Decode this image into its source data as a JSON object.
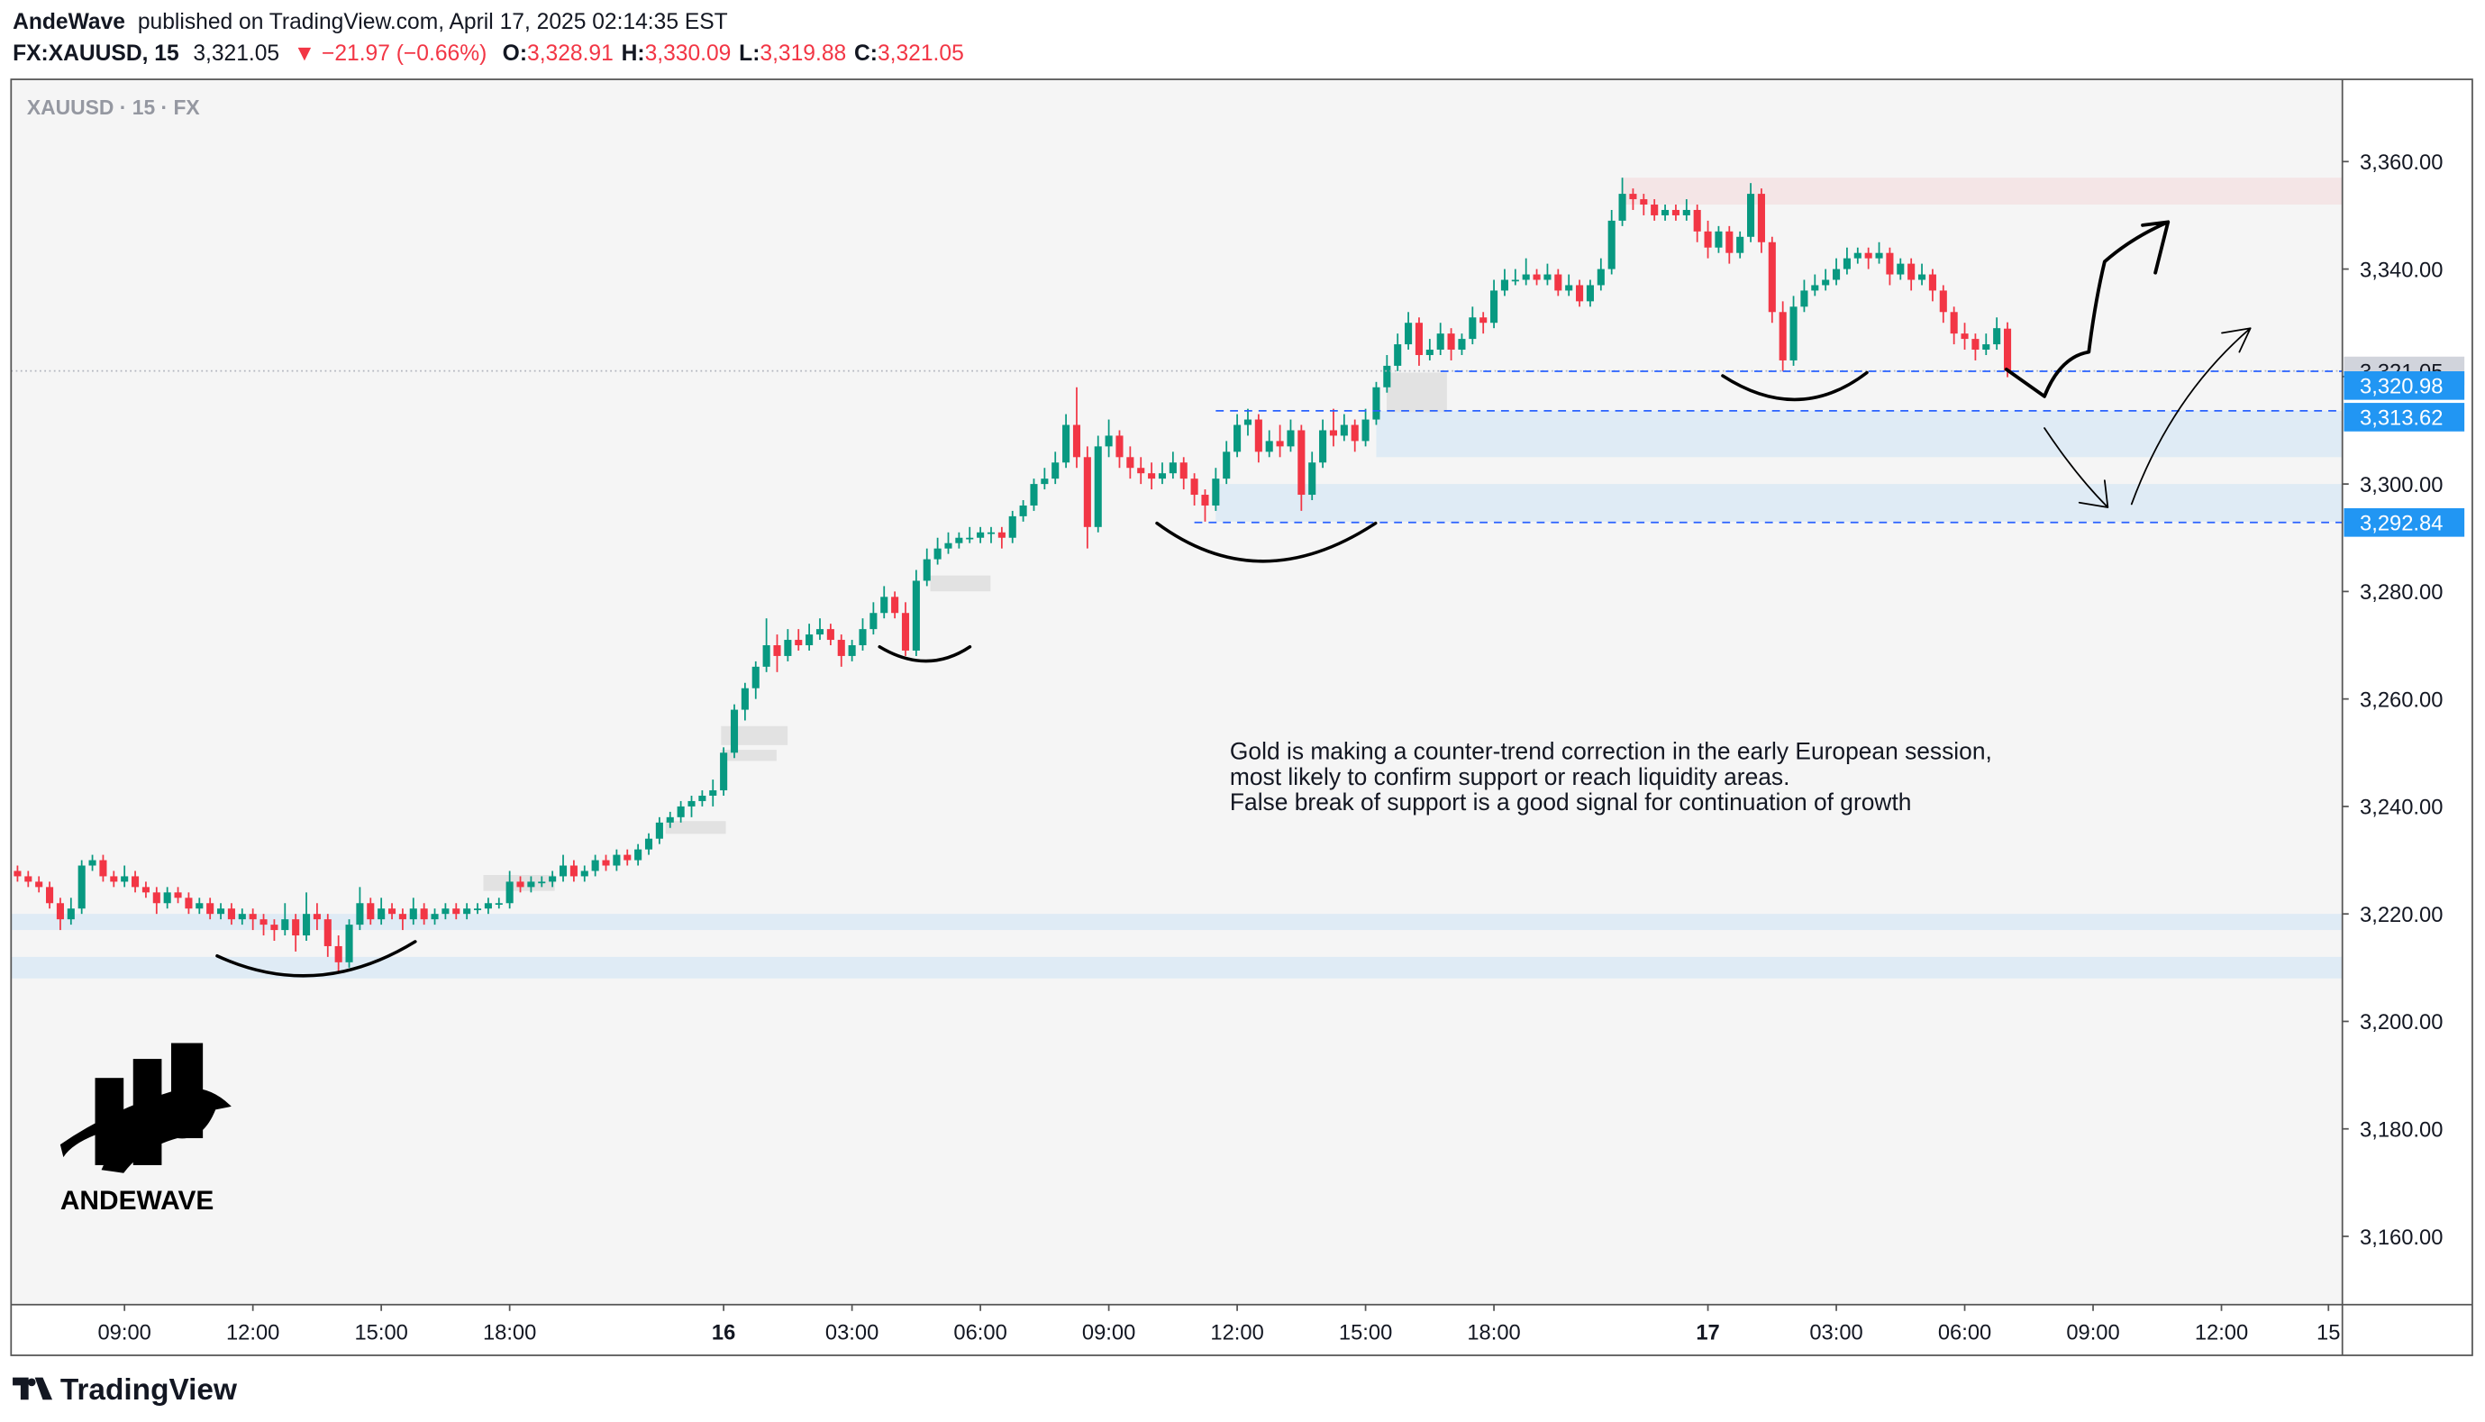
{
  "chart_data": {
    "type": "candlestick",
    "header": {
      "author": "AndeWave",
      "published": "published on TradingView.com, April 17, 2025 02:14:35 EST",
      "symbol": "FX:XAUUSD, 15",
      "last": "3,321.05",
      "change": "▼ −21.97 (−0.66%)",
      "ohlc": [
        {
          "label": "O:",
          "value": "3,328.91"
        },
        {
          "label": "H:",
          "value": "3,330.09"
        },
        {
          "label": "L:",
          "value": "3,319.88"
        },
        {
          "label": "C:",
          "value": "3,321.05"
        }
      ]
    },
    "watermark": "XAUUSD · 15 · FX",
    "annotation": [
      "Gold is making a counter-trend correction in the early European session,",
      "most likely to confirm support or reach liquidity areas.",
      "False break of support is a good signal for continuation of growth"
    ],
    "logo": "ANDEWAVE",
    "footer": "TradingView",
    "up_color": "#089981",
    "down_color": "#f23645",
    "xlim": [
      -0.6,
      217.3
    ],
    "xticks": [
      {
        "value": 10,
        "label": "09:00"
      },
      {
        "value": 22,
        "label": "12:00"
      },
      {
        "value": 34,
        "label": "15:00"
      },
      {
        "value": 46,
        "label": "18:00"
      },
      {
        "value": 66,
        "label": "16"
      },
      {
        "value": 78,
        "label": "03:00"
      },
      {
        "value": 90,
        "label": "06:00"
      },
      {
        "value": 102,
        "label": "09:00"
      },
      {
        "value": 114,
        "label": "12:00"
      },
      {
        "value": 126,
        "label": "15:00"
      },
      {
        "value": 138,
        "label": "18:00"
      },
      {
        "value": 158,
        "label": "17"
      },
      {
        "value": 170,
        "label": "03:00"
      },
      {
        "value": 182,
        "label": "06:00"
      },
      {
        "value": 194,
        "label": "09:00"
      },
      {
        "value": 206,
        "label": "12:00"
      },
      {
        "value": 216,
        "label": "15"
      }
    ],
    "ylim": [
      3147.3,
      3375.3
    ],
    "yticks": [
      {
        "value": 3160,
        "label": "3,160.00"
      },
      {
        "value": 3180,
        "label": "3,180.00"
      },
      {
        "value": 3200,
        "label": "3,200.00"
      },
      {
        "value": 3220,
        "label": "3,220.00"
      },
      {
        "value": 3240,
        "label": "3,240.00"
      },
      {
        "value": 3260,
        "label": "3,260.00"
      },
      {
        "value": 3280,
        "label": "3,280.00"
      },
      {
        "value": 3300,
        "label": "3,300.00"
      },
      {
        "value": 3320,
        "label": "3,320.00"
      },
      {
        "value": 3340,
        "label": "3,340.00"
      },
      {
        "value": 3360,
        "label": "3,360.00"
      }
    ],
    "price_label": {
      "value": 3321.05,
      "label": "3,321.05"
    },
    "levels": [
      {
        "value": 3320.98,
        "label": "3,320.98",
        "from": 133
      },
      {
        "value": 3313.62,
        "label": "3,313.62",
        "from": 112
      },
      {
        "value": 3292.84,
        "label": "3,292.84",
        "from": 110
      }
    ],
    "zones": [
      {
        "low": 3352,
        "high": 3357,
        "from": 150,
        "color": "rgba(242,54,69,0.08)"
      },
      {
        "low": 3305,
        "high": 3313.62,
        "from": 127,
        "color": "rgba(33,150,243,0.1)"
      },
      {
        "low": 3293,
        "high": 3300,
        "from": 112,
        "color": "rgba(33,150,243,0.1)"
      },
      {
        "low": 3217,
        "high": 3220,
        "from": -0.6,
        "color": "rgba(33,150,243,0.1)"
      },
      {
        "low": 3208,
        "high": 3212,
        "from": -0.6,
        "color": "rgba(33,150,243,0.1)"
      }
    ],
    "candles": [
      [
        3228,
        3229,
        3226,
        3227
      ],
      [
        3227,
        3228,
        3225,
        3226
      ],
      [
        3226,
        3227,
        3224,
        3225
      ],
      [
        3225,
        3226,
        3221,
        3222
      ],
      [
        3222,
        3223,
        3217,
        3219
      ],
      [
        3219,
        3223,
        3218,
        3221
      ],
      [
        3221,
        3230,
        3220,
        3229
      ],
      [
        3229,
        3231,
        3228,
        3230
      ],
      [
        3230,
        3231,
        3226,
        3227
      ],
      [
        3227,
        3228,
        3225,
        3226
      ],
      [
        3226,
        3229,
        3225,
        3227
      ],
      [
        3227,
        3228,
        3224,
        3225
      ],
      [
        3225,
        3226,
        3223,
        3224
      ],
      [
        3224,
        3225,
        3220,
        3222
      ],
      [
        3222,
        3225,
        3221,
        3224
      ],
      [
        3224,
        3225,
        3222,
        3223
      ],
      [
        3223,
        3224,
        3220,
        3221
      ],
      [
        3221,
        3223,
        3220,
        3222
      ],
      [
        3222,
        3223,
        3219,
        3220
      ],
      [
        3220,
        3222,
        3219,
        3221
      ],
      [
        3221,
        3222,
        3218,
        3219
      ],
      [
        3219,
        3221,
        3218,
        3220
      ],
      [
        3220,
        3221,
        3217,
        3219
      ],
      [
        3219,
        3220,
        3216,
        3218
      ],
      [
        3218,
        3219,
        3215,
        3217
      ],
      [
        3217,
        3222,
        3216,
        3219
      ],
      [
        3219,
        3220,
        3213,
        3216
      ],
      [
        3216,
        3224,
        3215,
        3220
      ],
      [
        3220,
        3222,
        3217,
        3219
      ],
      [
        3219,
        3220,
        3212,
        3214
      ],
      [
        3214,
        3216,
        3209,
        3211
      ],
      [
        3211,
        3219,
        3210,
        3218
      ],
      [
        3218,
        3225,
        3217,
        3222
      ],
      [
        3222,
        3223,
        3218,
        3219
      ],
      [
        3219,
        3223,
        3218,
        3221
      ],
      [
        3221,
        3222,
        3219,
        3220
      ],
      [
        3220,
        3221,
        3217,
        3219
      ],
      [
        3219,
        3223,
        3218,
        3221
      ],
      [
        3221,
        3222,
        3218,
        3219
      ],
      [
        3219,
        3221,
        3218,
        3220
      ],
      [
        3220,
        3222,
        3219,
        3221
      ],
      [
        3221,
        3222,
        3219,
        3220
      ],
      [
        3220,
        3222,
        3219,
        3221
      ],
      [
        3221,
        3222,
        3220,
        3221
      ],
      [
        3221,
        3223,
        3220,
        3222
      ],
      [
        3222,
        3223,
        3221,
        3222
      ],
      [
        3222,
        3228,
        3221,
        3226
      ],
      [
        3226,
        3227,
        3224,
        3225
      ],
      [
        3225,
        3227,
        3224,
        3226
      ],
      [
        3226,
        3227,
        3225,
        3226
      ],
      [
        3226,
        3228,
        3225,
        3227
      ],
      [
        3227,
        3231,
        3226,
        3229
      ],
      [
        3229,
        3230,
        3226,
        3227
      ],
      [
        3227,
        3229,
        3226,
        3228
      ],
      [
        3228,
        3231,
        3227,
        3230
      ],
      [
        3230,
        3231,
        3228,
        3229
      ],
      [
        3229,
        3232,
        3228,
        3231
      ],
      [
        3231,
        3232,
        3229,
        3230
      ],
      [
        3230,
        3233,
        3229,
        3232
      ],
      [
        3232,
        3235,
        3231,
        3234
      ],
      [
        3234,
        3238,
        3233,
        3237
      ],
      [
        3237,
        3239,
        3236,
        3238
      ],
      [
        3238,
        3241,
        3237,
        3240
      ],
      [
        3240,
        3242,
        3238,
        3241
      ],
      [
        3241,
        3243,
        3240,
        3242
      ],
      [
        3242,
        3245,
        3240,
        3243
      ],
      [
        3243,
        3251,
        3242,
        3250
      ],
      [
        3250,
        3259,
        3249,
        3258
      ],
      [
        3258,
        3263,
        3256,
        3262
      ],
      [
        3262,
        3267,
        3260,
        3266
      ],
      [
        3266,
        3275,
        3265,
        3270
      ],
      [
        3270,
        3272,
        3265,
        3268
      ],
      [
        3268,
        3273,
        3267,
        3271
      ],
      [
        3271,
        3273,
        3269,
        3270
      ],
      [
        3270,
        3274,
        3269,
        3272
      ],
      [
        3272,
        3275,
        3271,
        3273
      ],
      [
        3273,
        3274,
        3270,
        3271
      ],
      [
        3271,
        3272,
        3266,
        3268
      ],
      [
        3268,
        3271,
        3267,
        3270
      ],
      [
        3270,
        3275,
        3269,
        3273
      ],
      [
        3273,
        3278,
        3272,
        3276
      ],
      [
        3276,
        3281,
        3275,
        3279
      ],
      [
        3279,
        3280,
        3275,
        3276
      ],
      [
        3276,
        3278,
        3268,
        3269
      ],
      [
        3269,
        3284,
        3268,
        3282
      ],
      [
        3282,
        3288,
        3281,
        3286
      ],
      [
        3286,
        3290,
        3285,
        3288
      ],
      [
        3288,
        3291,
        3287,
        3289
      ],
      [
        3289,
        3291,
        3288,
        3290
      ],
      [
        3290,
        3292,
        3289,
        3290
      ],
      [
        3290,
        3292,
        3289,
        3291
      ],
      [
        3291,
        3292,
        3289,
        3291
      ],
      [
        3291,
        3292,
        3288,
        3290
      ],
      [
        3290,
        3295,
        3289,
        3294
      ],
      [
        3294,
        3297,
        3293,
        3296
      ],
      [
        3296,
        3301,
        3295,
        3300
      ],
      [
        3300,
        3303,
        3299,
        3301
      ],
      [
        3301,
        3306,
        3300,
        3304
      ],
      [
        3304,
        3313,
        3303,
        3311
      ],
      [
        3311,
        3318,
        3303,
        3305
      ],
      [
        3305,
        3307,
        3288,
        3292
      ],
      [
        3292,
        3309,
        3291,
        3307
      ],
      [
        3307,
        3312,
        3305,
        3309
      ],
      [
        3309,
        3310,
        3303,
        3305
      ],
      [
        3305,
        3307,
        3301,
        3303
      ],
      [
        3303,
        3305,
        3300,
        3302
      ],
      [
        3302,
        3304,
        3299,
        3301
      ],
      [
        3301,
        3304,
        3300,
        3302
      ],
      [
        3302,
        3306,
        3301,
        3304
      ],
      [
        3304,
        3305,
        3299,
        3301
      ],
      [
        3301,
        3302,
        3296,
        3298
      ],
      [
        3298,
        3299,
        3293,
        3296
      ],
      [
        3296,
        3303,
        3295,
        3301
      ],
      [
        3301,
        3308,
        3300,
        3306
      ],
      [
        3306,
        3313,
        3305,
        3311
      ],
      [
        3311,
        3314,
        3309,
        3312
      ],
      [
        3312,
        3313,
        3304,
        3306
      ],
      [
        3306,
        3310,
        3305,
        3308
      ],
      [
        3308,
        3311,
        3305,
        3307
      ],
      [
        3307,
        3312,
        3306,
        3310
      ],
      [
        3310,
        3311,
        3295,
        3298
      ],
      [
        3298,
        3306,
        3297,
        3304
      ],
      [
        3304,
        3312,
        3303,
        3310
      ],
      [
        3310,
        3314,
        3307,
        3309
      ],
      [
        3309,
        3313,
        3308,
        3311
      ],
      [
        3311,
        3312,
        3306,
        3308
      ],
      [
        3308,
        3314,
        3307,
        3312
      ],
      [
        3312,
        3319,
        3311,
        3318
      ],
      [
        3318,
        3324,
        3317,
        3322
      ],
      [
        3322,
        3328,
        3321,
        3326
      ],
      [
        3326,
        3332,
        3325,
        3330
      ],
      [
        3330,
        3331,
        3322,
        3324
      ],
      [
        3324,
        3327,
        3323,
        3325
      ],
      [
        3325,
        3330,
        3324,
        3328
      ],
      [
        3328,
        3329,
        3323,
        3325
      ],
      [
        3325,
        3328,
        3324,
        3327
      ],
      [
        3327,
        3333,
        3326,
        3331
      ],
      [
        3331,
        3332,
        3328,
        3330
      ],
      [
        3330,
        3338,
        3329,
        3336
      ],
      [
        3336,
        3340,
        3335,
        3338
      ],
      [
        3338,
        3340,
        3337,
        3338
      ],
      [
        3338,
        3342,
        3337,
        3339
      ],
      [
        3339,
        3340,
        3337,
        3338
      ],
      [
        3338,
        3341,
        3337,
        3339
      ],
      [
        3339,
        3340,
        3335,
        3336
      ],
      [
        3336,
        3339,
        3335,
        3337
      ],
      [
        3337,
        3338,
        3333,
        3334
      ],
      [
        3334,
        3338,
        3333,
        3337
      ],
      [
        3337,
        3342,
        3336,
        3340
      ],
      [
        3340,
        3351,
        3339,
        3349
      ],
      [
        3349,
        3357,
        3348,
        3354
      ],
      [
        3354,
        3355,
        3351,
        3353
      ],
      [
        3353,
        3354,
        3350,
        3352
      ],
      [
        3352,
        3353,
        3349,
        3350
      ],
      [
        3350,
        3352,
        3349,
        3351
      ],
      [
        3351,
        3352,
        3349,
        3350
      ],
      [
        3350,
        3353,
        3349,
        3351
      ],
      [
        3351,
        3352,
        3345,
        3347
      ],
      [
        3347,
        3349,
        3342,
        3344
      ],
      [
        3344,
        3348,
        3343,
        3347
      ],
      [
        3347,
        3348,
        3341,
        3343
      ],
      [
        3343,
        3347,
        3342,
        3346
      ],
      [
        3346,
        3356,
        3345,
        3354
      ],
      [
        3354,
        3355,
        3343,
        3345
      ],
      [
        3345,
        3346,
        3330,
        3332
      ],
      [
        3332,
        3334,
        3321,
        3323
      ],
      [
        3323,
        3335,
        3322,
        3333
      ],
      [
        3333,
        3338,
        3332,
        3336
      ],
      [
        3336,
        3339,
        3335,
        3337
      ],
      [
        3337,
        3340,
        3336,
        3338
      ],
      [
        3338,
        3342,
        3337,
        3340
      ],
      [
        3340,
        3344,
        3339,
        3342
      ],
      [
        3342,
        3344,
        3341,
        3343
      ],
      [
        3343,
        3344,
        3340,
        3342
      ],
      [
        3342,
        3345,
        3341,
        3343
      ],
      [
        3343,
        3344,
        3337,
        3339
      ],
      [
        3339,
        3342,
        3338,
        3341
      ],
      [
        3341,
        3342,
        3336,
        3338
      ],
      [
        3338,
        3341,
        3337,
        3339
      ],
      [
        3339,
        3340,
        3334,
        3336
      ],
      [
        3336,
        3337,
        3330,
        3332
      ],
      [
        3332,
        3333,
        3326,
        3328
      ],
      [
        3328,
        3330,
        3325,
        3327
      ],
      [
        3327,
        3328,
        3323,
        3325
      ],
      [
        3325,
        3328,
        3324,
        3326
      ],
      [
        3326,
        3331,
        3325,
        3329
      ],
      [
        3328.91,
        3330.09,
        3319.88,
        3321.05
      ]
    ]
  }
}
